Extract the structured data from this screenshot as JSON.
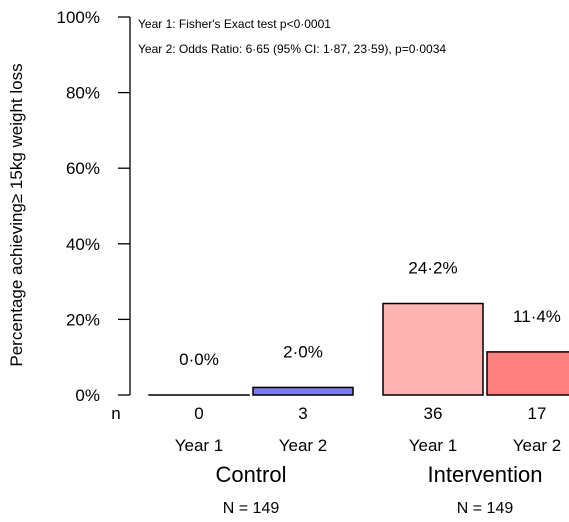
{
  "chart_data": {
    "type": "bar",
    "ylabel": "Percentage  achieving≥ 15kg  weight  loss",
    "ylim": [
      0,
      100
    ],
    "yticks": [
      "0%",
      "20%",
      "40%",
      "60%",
      "80%",
      "100%"
    ],
    "count_axis_label": "n",
    "annotations": [
      "Year 1: Fisher's Exact test p<0·0001",
      "Year 2: Odds Ratio: 6·65 (95% CI: 1·87, 23·59), p=0·0034"
    ],
    "groups": [
      {
        "name": "Control",
        "n_label": "N = 149",
        "bars": [
          {
            "category": "Year 1",
            "value": 0.0,
            "label": "0·0%",
            "count": "0",
            "color": "#0000ff"
          },
          {
            "category": "Year 2",
            "value": 2.0,
            "label": "2·0%",
            "count": "3",
            "color": "#7b7bf0"
          }
        ]
      },
      {
        "name": "Intervention",
        "n_label": "N = 149",
        "bars": [
          {
            "category": "Year 1",
            "value": 24.2,
            "label": "24·2%",
            "count": "36",
            "color": "#ffb3b3"
          },
          {
            "category": "Year 2",
            "value": 11.4,
            "label": "11·4%",
            "count": "17",
            "color": "#ff8080"
          }
        ]
      }
    ]
  }
}
